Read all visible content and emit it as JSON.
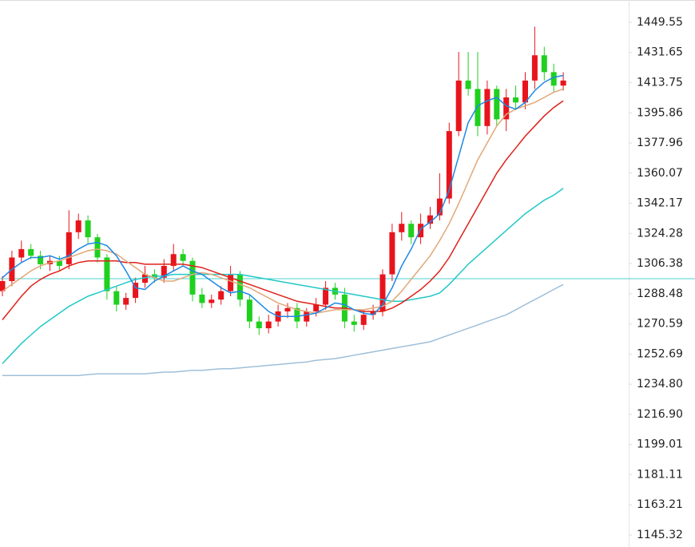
{
  "chart_data": {
    "type": "candlestick",
    "open": [
      1290,
      1296,
      1310,
      1315,
      1311,
      1306,
      1308,
      1306,
      1325,
      1332,
      1322,
      1310,
      1290,
      1282,
      1286,
      1295,
      1300,
      1298,
      1305,
      1312,
      1308,
      1288,
      1283,
      1285,
      1290,
      1300,
      1285,
      1272,
      1268,
      1272,
      1278,
      1280,
      1272,
      1278,
      1282,
      1292,
      1288,
      1272,
      1270,
      1276,
      1278,
      1300,
      1325,
      1330,
      1322,
      1330,
      1335,
      1345,
      1385,
      1415,
      1410,
      1388,
      1410,
      1392,
      1405,
      1402,
      1415,
      1430,
      1420,
      1412
    ],
    "high": [
      1299,
      1314,
      1320,
      1318,
      1314,
      1311,
      1311,
      1338,
      1336,
      1335,
      1324,
      1312,
      1293,
      1289,
      1298,
      1305,
      1303,
      1309,
      1318,
      1315,
      1310,
      1292,
      1288,
      1293,
      1305,
      1302,
      1288,
      1275,
      1276,
      1282,
      1283,
      1283,
      1280,
      1286,
      1296,
      1295,
      1292,
      1276,
      1279,
      1282,
      1303,
      1330,
      1337,
      1332,
      1336,
      1340,
      1360,
      1390,
      1432,
      1432,
      1432,
      1415,
      1412,
      1410,
      1412,
      1420,
      1447,
      1435,
      1425,
      1420
    ],
    "low": [
      1287,
      1293,
      1307,
      1309,
      1303,
      1302,
      1302,
      1303,
      1321,
      1318,
      1307,
      1285,
      1278,
      1279,
      1283,
      1292,
      1295,
      1295,
      1302,
      1305,
      1284,
      1280,
      1280,
      1282,
      1287,
      1281,
      1268,
      1264,
      1265,
      1269,
      1274,
      1268,
      1269,
      1275,
      1279,
      1285,
      1268,
      1266,
      1267,
      1273,
      1275,
      1296,
      1320,
      1318,
      1318,
      1327,
      1332,
      1342,
      1382,
      1406,
      1382,
      1383,
      1388,
      1385,
      1398,
      1398,
      1410,
      1415,
      1408,
      1409
    ],
    "close": [
      1296,
      1310,
      1315,
      1311,
      1306,
      1308,
      1305,
      1325,
      1332,
      1322,
      1310,
      1290,
      1282,
      1286,
      1295,
      1300,
      1298,
      1305,
      1312,
      1308,
      1288,
      1283,
      1285,
      1290,
      1300,
      1285,
      1272,
      1268,
      1272,
      1278,
      1280,
      1272,
      1278,
      1282,
      1292,
      1288,
      1272,
      1270,
      1276,
      1278,
      1300,
      1325,
      1330,
      1322,
      1330,
      1335,
      1345,
      1385,
      1415,
      1410,
      1388,
      1410,
      1392,
      1405,
      1402,
      1415,
      1430,
      1420,
      1412,
      1415
    ],
    "up_color": "#e8141c",
    "down_color": "#1fd01f",
    "series": [
      {
        "color": "#9fbfd8",
        "values": [
          1240,
          1240,
          1240,
          1240,
          1240,
          1240,
          1240,
          1240,
          1240,
          1240.5,
          1241,
          1241,
          1241,
          1241,
          1241,
          1241,
          1241.5,
          1242,
          1242,
          1242.5,
          1243,
          1243,
          1243.5,
          1244,
          1244,
          1244.5,
          1245,
          1245.5,
          1246,
          1246.5,
          1247,
          1247.5,
          1248,
          1249,
          1249.5,
          1250,
          1251,
          1252,
          1253,
          1254,
          1255,
          1256,
          1257,
          1258,
          1259,
          1260,
          1262,
          1264,
          1266,
          1268,
          1270,
          1272,
          1274,
          1276,
          1279,
          1282,
          1285,
          1288,
          1291,
          1294
        ]
      },
      {
        "color": "#22c8c8",
        "values": [
          1247,
          1253,
          1259,
          1264,
          1269,
          1273,
          1277,
          1281,
          1284,
          1287,
          1289,
          1291,
          1293,
          1295,
          1297,
          1298,
          1299,
          1299,
          1300,
          1300,
          1300,
          1300,
          1300,
          1300,
          1300,
          1300,
          1299,
          1298,
          1297,
          1296,
          1295,
          1294,
          1293,
          1292,
          1291,
          1290,
          1289,
          1288,
          1287,
          1286,
          1285,
          1284,
          1284,
          1285,
          1286,
          1287,
          1289,
          1294,
          1300,
          1306,
          1311,
          1316,
          1321,
          1326,
          1331,
          1336,
          1340,
          1344,
          1347,
          1351
        ]
      },
      {
        "color": "#e0201a",
        "values": [
          1273,
          1280,
          1287,
          1293,
          1297,
          1300,
          1302,
          1305,
          1307,
          1308,
          1308,
          1308,
          1308,
          1307,
          1307,
          1306,
          1306,
          1306,
          1306,
          1306,
          1305,
          1304,
          1302,
          1300,
          1298,
          1296,
          1294,
          1292,
          1290,
          1288,
          1286,
          1284,
          1283,
          1282,
          1281,
          1280,
          1280,
          1279,
          1278,
          1278,
          1278,
          1280,
          1283,
          1287,
          1291,
          1296,
          1302,
          1310,
          1320,
          1330,
          1340,
          1350,
          1360,
          1368,
          1375,
          1382,
          1388,
          1394,
          1399,
          1403
        ]
      },
      {
        "color": "#e0a878",
        "values": [
          1290,
          1294,
          1298,
          1302,
          1305,
          1307,
          1308,
          1310,
          1312,
          1314,
          1315,
          1314,
          1312,
          1308,
          1304,
          1300,
          1298,
          1296,
          1296,
          1298,
          1300,
          1301,
          1300,
          1298,
          1296,
          1294,
          1292,
          1289,
          1286,
          1283,
          1281,
          1279,
          1278,
          1277,
          1278,
          1279,
          1279,
          1279,
          1279,
          1280,
          1281,
          1284,
          1290,
          1297,
          1304,
          1311,
          1320,
          1330,
          1342,
          1355,
          1368,
          1378,
          1388,
          1395,
          1398,
          1400,
          1402,
          1405,
          1408,
          1410
        ]
      },
      {
        "color": "#1e88e5",
        "values": [
          1298,
          1303,
          1307,
          1310,
          1310,
          1311,
          1309,
          1311,
          1315,
          1318,
          1319,
          1317,
          1311,
          1302,
          1292,
          1291,
          1296,
          1299,
          1302,
          1305,
          1302,
          1300,
          1296,
          1292,
          1289,
          1290,
          1288,
          1283,
          1278,
          1275,
          1275,
          1275,
          1276,
          1277,
          1280,
          1283,
          1282,
          1279,
          1277,
          1276,
          1282,
          1292,
          1305,
          1315,
          1327,
          1331,
          1336,
          1350,
          1370,
          1390,
          1400,
          1403,
          1405,
          1400,
          1398,
          1402,
          1409,
          1414,
          1417,
          1418
        ]
      }
    ],
    "reference_line": 1297.4,
    "reference_color": "#4fd0d0",
    "ylim": [
      1138.2,
      1462.8
    ],
    "yticks": [
      1449.55,
      1431.65,
      1413.75,
      1395.86,
      1377.96,
      1360.07,
      1342.17,
      1324.28,
      1306.38,
      1288.48,
      1270.59,
      1252.69,
      {
        "value": 1234.8,
        "label": "1234.80"
      },
      {
        "value": 1216.9,
        "label": "1216.90"
      },
      1199.01,
      1181.11,
      1163.21,
      1145.32
    ]
  }
}
